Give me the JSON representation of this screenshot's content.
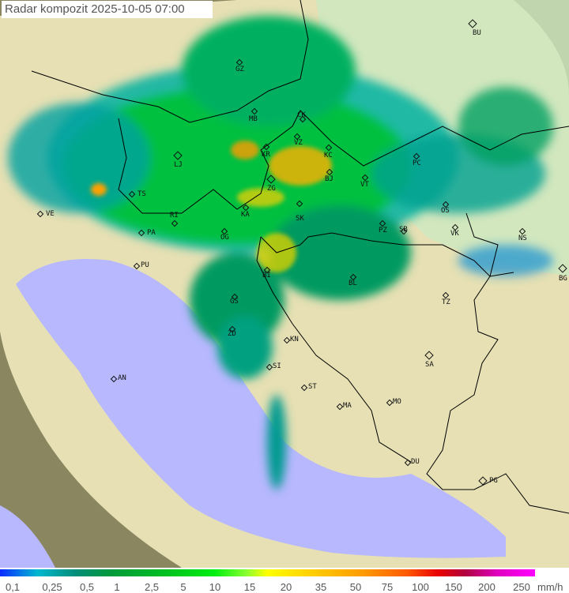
{
  "header": {
    "title": "Radar kompozit  2025-10-05   07:00"
  },
  "colors": {
    "sea": "#b8b8ff",
    "land": "#e8e0b0",
    "outside": "#8a8660",
    "border": "#000000"
  },
  "cities": [
    {
      "code": "BU",
      "capital": true
    },
    {
      "code": "GZ"
    },
    {
      "code": "MB"
    },
    {
      "code": "CK"
    },
    {
      "code": "VZ"
    },
    {
      "code": "KR"
    },
    {
      "code": "KC"
    },
    {
      "code": "LJ",
      "capital": true
    },
    {
      "code": "BJ"
    },
    {
      "code": "VT"
    },
    {
      "code": "ZG",
      "capital": true
    },
    {
      "code": "PC"
    },
    {
      "code": "TS"
    },
    {
      "code": "VE"
    },
    {
      "code": "RI"
    },
    {
      "code": "KA"
    },
    {
      "code": "SK"
    },
    {
      "code": "PA"
    },
    {
      "code": "OG"
    },
    {
      "code": "PZ"
    },
    {
      "code": "SB"
    },
    {
      "code": "OS"
    },
    {
      "code": "VK"
    },
    {
      "code": "NS"
    },
    {
      "code": "BG",
      "capital": true
    },
    {
      "code": "PU"
    },
    {
      "code": "BI"
    },
    {
      "code": "BL"
    },
    {
      "code": "TZ"
    },
    {
      "code": "GS"
    },
    {
      "code": "ZD"
    },
    {
      "code": "KN"
    },
    {
      "code": "SA",
      "capital": true
    },
    {
      "code": "SI"
    },
    {
      "code": "AN"
    },
    {
      "code": "ST"
    },
    {
      "code": "MA"
    },
    {
      "code": "MO"
    },
    {
      "code": "DU"
    },
    {
      "code": "PG",
      "capital": true
    }
  ],
  "legend": {
    "unit": "mm/h",
    "ticks": [
      "0,1",
      "0,25",
      "0,5",
      "1",
      "2,5",
      "5",
      "10",
      "15",
      "20",
      "35",
      "50",
      "75",
      "100",
      "150",
      "200",
      "250"
    ]
  }
}
